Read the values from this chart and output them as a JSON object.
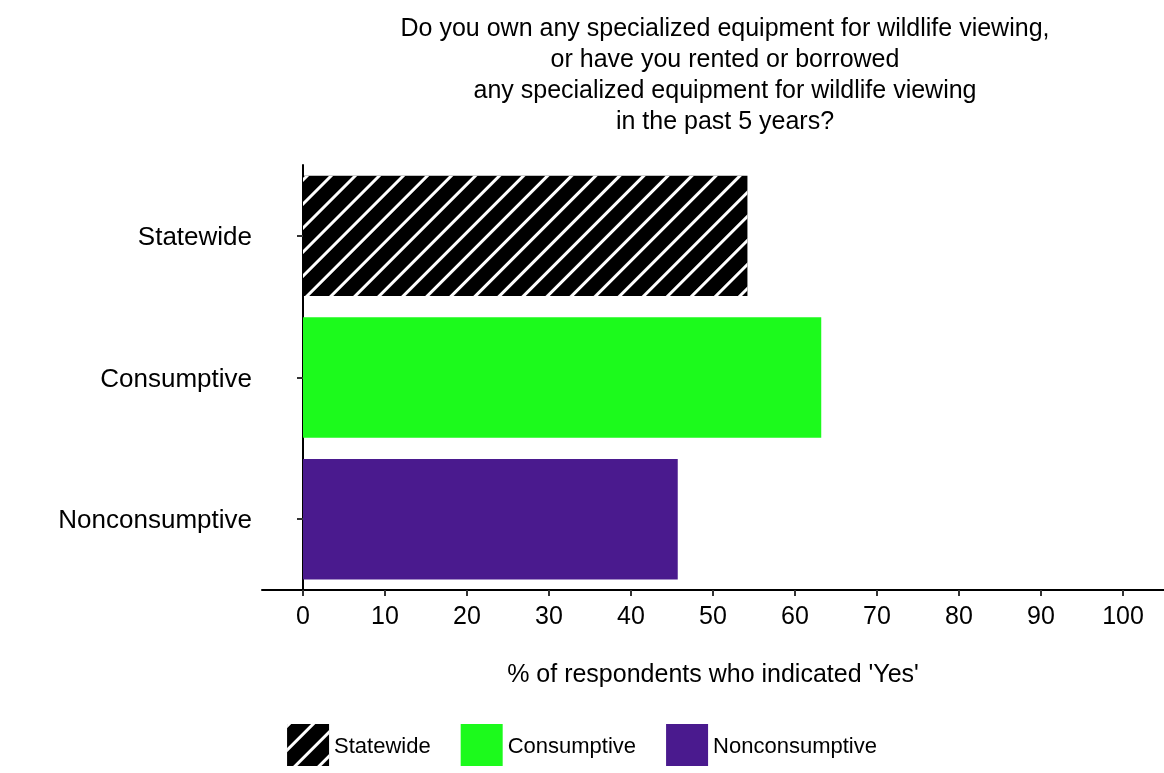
{
  "chart_data": {
    "type": "bar",
    "orientation": "horizontal",
    "title": "Do you own any specialized equipment for wildlife viewing,\nor have you rented or borrowed\nany specialized equipment for wildlife viewing\nin the past 5 years?",
    "categories": [
      "Statewide",
      "Consumptive",
      "Nonconsumptive"
    ],
    "series": [
      {
        "name": "Statewide",
        "color": "#000000",
        "values": [
          54.2,
          null,
          null
        ]
      },
      {
        "name": "Consumptive",
        "color": "#1cfa1c",
        "values": [
          null,
          63.2,
          null
        ]
      },
      {
        "name": "Nonconsumptive",
        "color": "#4a1a8e",
        "values": [
          null,
          null,
          45.7
        ]
      }
    ],
    "xlabel": "% of respondents who indicated 'Yes'",
    "xlim": [
      -5,
      105
    ],
    "xticks": [
      0,
      10,
      20,
      30,
      40,
      50,
      60,
      70,
      80,
      90,
      100
    ],
    "grid": false,
    "legend": "bottom"
  }
}
